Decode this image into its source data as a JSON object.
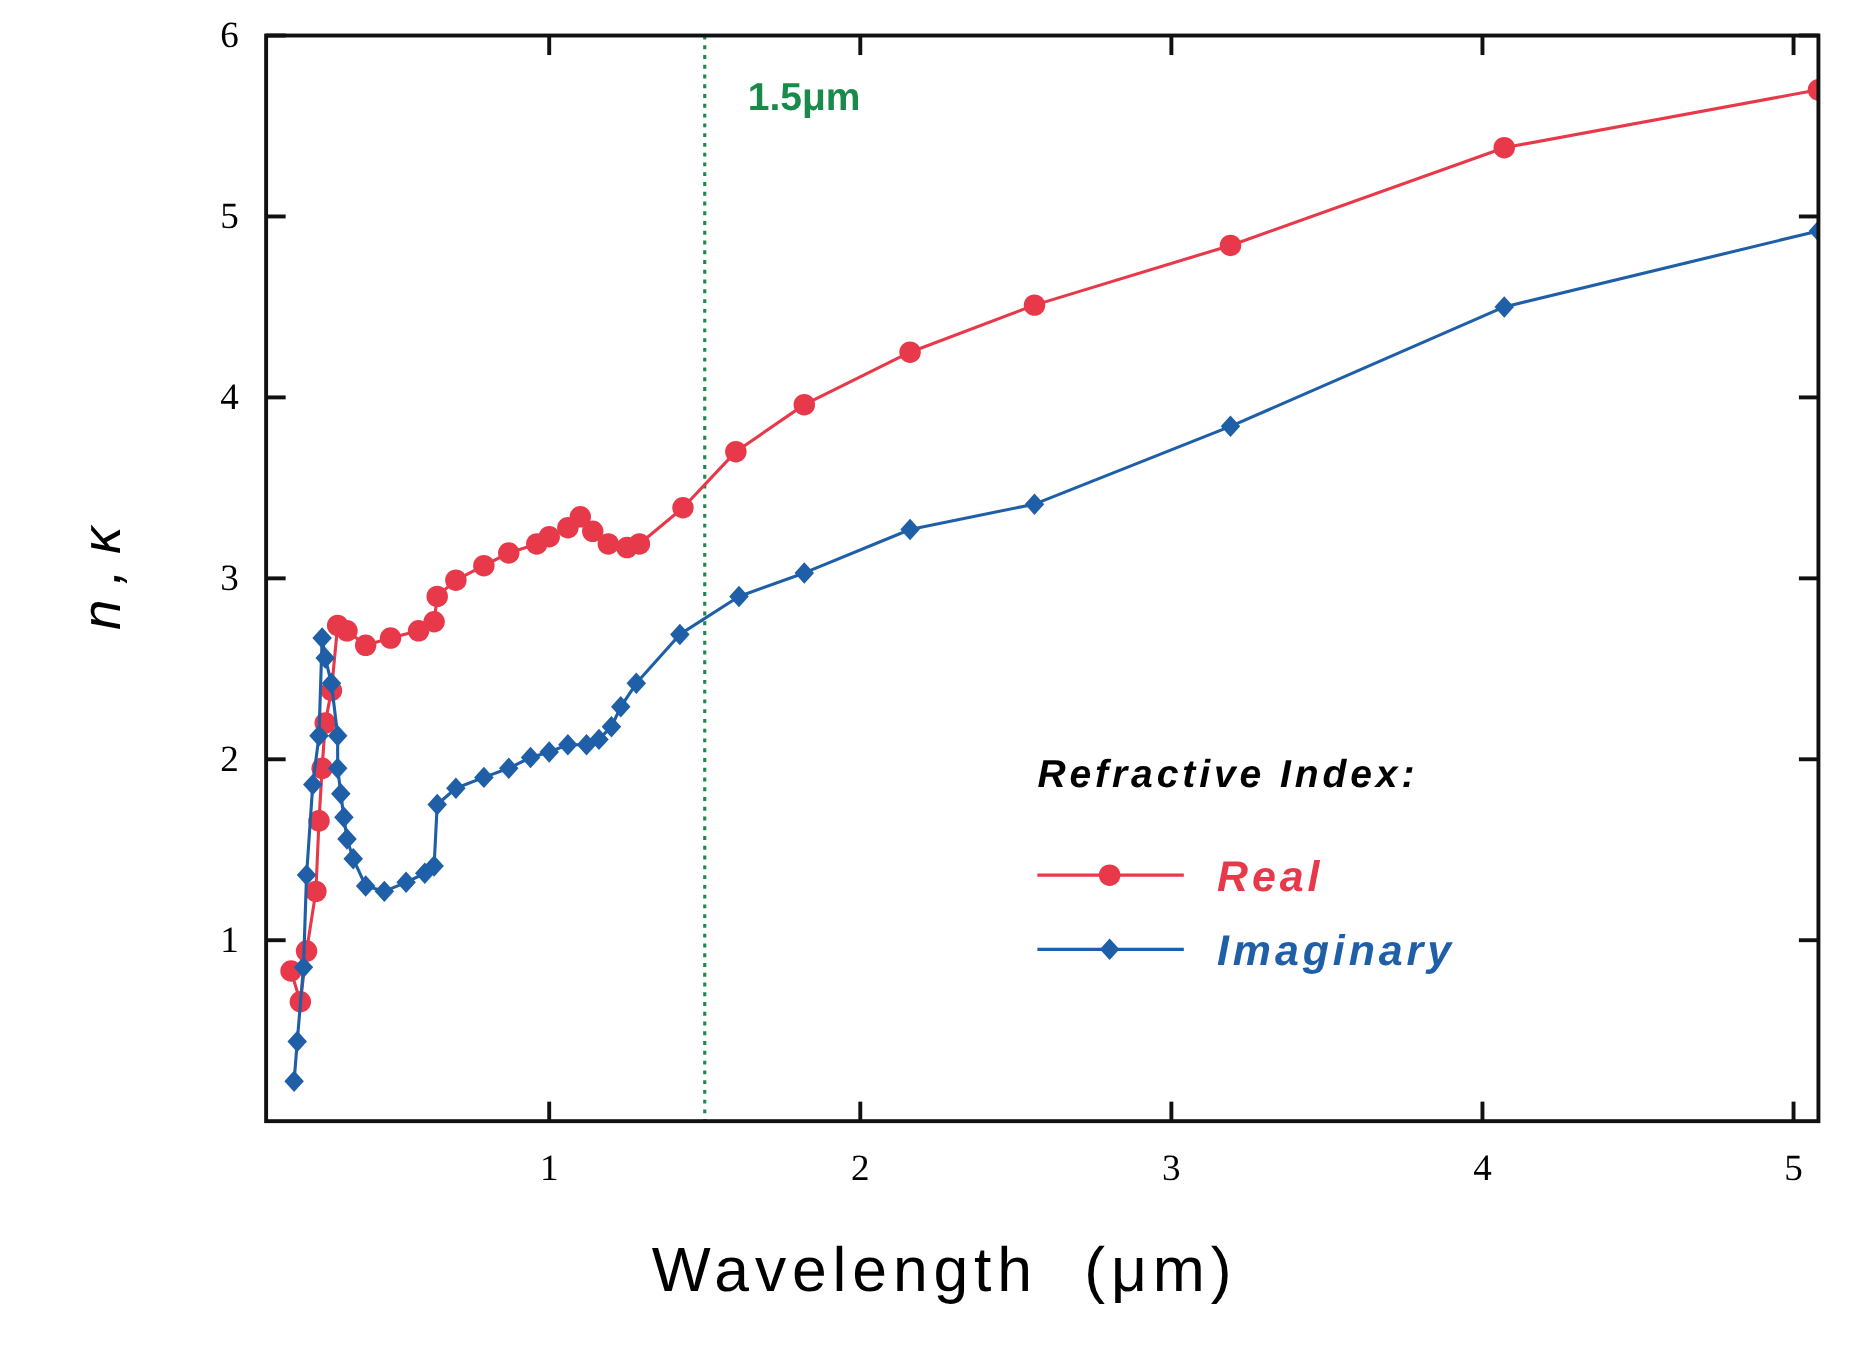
{
  "chart_data": {
    "type": "line",
    "xlabel": "Wavelength  (μm)",
    "ylabel": "n , κ",
    "legend_title": "Refractive Index:",
    "legend": "bottom right",
    "grid": false,
    "xlim": [
      0.09,
      5.08
    ],
    "xticks": [
      1,
      2,
      3,
      4,
      {
        "value": 5,
        "label": "5"
      }
    ],
    "ylim": [
      0,
      6
    ],
    "yticks": [
      1,
      2,
      3,
      4,
      5,
      6
    ],
    "ref_lines": [
      {
        "axis": "x",
        "value": 1.5,
        "label": "1.5μm",
        "color": "#1a8a4a",
        "line_style": "dotted"
      }
    ],
    "series": [
      {
        "name": "Real",
        "color": "#e8394a",
        "marker": "circle",
        "x": [
          0.17,
          0.2,
          0.22,
          0.25,
          0.26,
          0.27,
          0.28,
          0.3,
          0.32,
          0.35,
          0.41,
          0.49,
          0.58,
          0.63,
          0.64,
          0.7,
          0.79,
          0.87,
          0.96,
          1.0,
          1.06,
          1.1,
          1.14,
          1.19,
          1.25,
          1.29,
          1.43,
          1.6,
          1.82,
          2.16,
          2.56,
          3.19,
          4.07,
          5.08
        ],
        "values": [
          0.83,
          0.66,
          0.94,
          1.27,
          1.66,
          1.95,
          2.2,
          2.38,
          2.74,
          2.71,
          2.63,
          2.67,
          2.71,
          2.76,
          2.9,
          2.99,
          3.07,
          3.14,
          3.19,
          3.23,
          3.28,
          3.34,
          3.26,
          3.19,
          3.17,
          3.19,
          3.39,
          3.7,
          3.96,
          4.25,
          4.51,
          4.84,
          5.38,
          5.7
        ]
      },
      {
        "name": "Imaginary",
        "color": "#1f5fa8",
        "marker": "diamond",
        "x": [
          0.18,
          0.19,
          0.21,
          0.22,
          0.24,
          0.26,
          0.27,
          0.28,
          0.3,
          0.32,
          0.32,
          0.33,
          0.34,
          0.35,
          0.37,
          0.41,
          0.47,
          0.54,
          0.6,
          0.63,
          0.64,
          0.7,
          0.79,
          0.87,
          0.94,
          1.0,
          1.06,
          1.12,
          1.16,
          1.2,
          1.23,
          1.28,
          1.42,
          1.61,
          1.82,
          2.16,
          2.56,
          3.19,
          4.07,
          5.08
        ],
        "values": [
          0.22,
          0.44,
          0.85,
          1.36,
          1.86,
          2.13,
          2.67,
          2.56,
          2.42,
          2.13,
          1.95,
          1.81,
          1.68,
          1.56,
          1.45,
          1.3,
          1.27,
          1.32,
          1.37,
          1.41,
          1.75,
          1.84,
          1.9,
          1.95,
          2.01,
          2.04,
          2.08,
          2.08,
          2.11,
          2.18,
          2.29,
          2.42,
          2.69,
          2.9,
          3.03,
          3.27,
          3.41,
          3.84,
          4.5,
          4.92
        ]
      }
    ]
  }
}
